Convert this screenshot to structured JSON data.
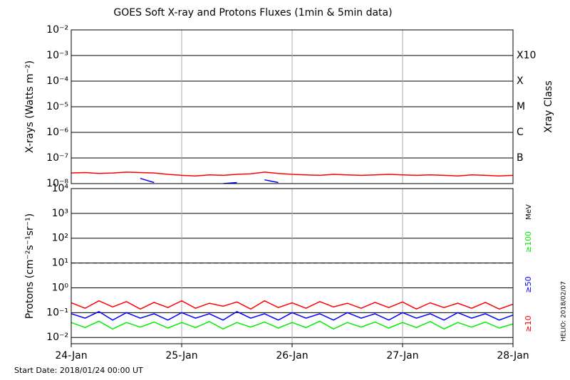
{
  "title": "GOES Soft X-ray and Protons Fluxes   (1min & 5min data)",
  "footer": "Start Date: 2018/01/24 00:00 UT",
  "credit": "HELIO: 2018/02/07",
  "chart_data": [
    {
      "type": "line",
      "log_y": true,
      "y_label": "X-rays (Watts m⁻²)",
      "y2_label": "Xray Class",
      "x": [
        24,
        24.125,
        24.25,
        24.375,
        24.5,
        24.625,
        24.75,
        24.875,
        25,
        25.125,
        25.25,
        25.375,
        25.5,
        25.625,
        25.75,
        25.875,
        26,
        26.125,
        26.25,
        26.375,
        26.5,
        26.625,
        26.75,
        26.875,
        27,
        27.125,
        27.25,
        27.375,
        27.5,
        27.625,
        27.75,
        27.875,
        28
      ],
      "xlim": [
        24,
        28
      ],
      "xticks": [
        {
          "value": 24,
          "label": "24-Jan"
        },
        {
          "value": 25,
          "label": "25-Jan"
        },
        {
          "value": 26,
          "label": "26-Jan"
        },
        {
          "value": 27,
          "label": "27-Jan"
        },
        {
          "value": 28,
          "label": "28-Jan"
        }
      ],
      "ylim": [
        1e-08,
        0.01
      ],
      "yticks": [
        {
          "value": 0.01,
          "label": "10⁻²"
        },
        {
          "value": 0.001,
          "label": "10⁻³"
        },
        {
          "value": 0.0001,
          "label": "10⁻⁴"
        },
        {
          "value": 1e-05,
          "label": "10⁻⁵"
        },
        {
          "value": 1e-06,
          "label": "10⁻⁶"
        },
        {
          "value": 1e-07,
          "label": "10⁻⁷"
        },
        {
          "value": 1e-08,
          "label": "10⁻⁸"
        }
      ],
      "y2lim": [
        1e-08,
        0.01
      ],
      "y2ticks": [
        {
          "value": 0.001,
          "label": "X10"
        },
        {
          "value": 0.0001,
          "label": "X"
        },
        {
          "value": 1e-05,
          "label": "M"
        },
        {
          "value": 1e-06,
          "label": "C"
        },
        {
          "value": 1e-07,
          "label": "B"
        }
      ],
      "series": [
        {
          "color": "#ff0000",
          "values": [
            2.6e-08,
            2.7e-08,
            2.5e-08,
            2.6e-08,
            2.8e-08,
            2.7e-08,
            2.6e-08,
            2.3e-08,
            2.1e-08,
            2e-08,
            2.2e-08,
            2.1e-08,
            2.3e-08,
            2.4e-08,
            2.8e-08,
            2.5e-08,
            2.3e-08,
            2.2e-08,
            2.1e-08,
            2.3e-08,
            2.2e-08,
            2.1e-08,
            2.2e-08,
            2.3e-08,
            2.2e-08,
            2.1e-08,
            2.2e-08,
            2.1e-08,
            2e-08,
            2.2e-08,
            2.1e-08,
            2e-08,
            2.1e-08
          ]
        },
        {
          "color": "#0000ff",
          "values": [
            null,
            null,
            null,
            null,
            null,
            1.6e-08,
            1.1e-08,
            null,
            null,
            null,
            null,
            1e-08,
            1.1e-08,
            null,
            1.4e-08,
            1.1e-08,
            null,
            null,
            null,
            null,
            null,
            null,
            null,
            null,
            null,
            null,
            null,
            null,
            null,
            null,
            null,
            null,
            null
          ]
        }
      ]
    },
    {
      "type": "line",
      "log_y": true,
      "y_label": "Protons (cm⁻²s⁻¹sr⁻¹)",
      "legend_unit": "MeV",
      "reference_line": 10,
      "x": [
        24,
        24.125,
        24.25,
        24.375,
        24.5,
        24.625,
        24.75,
        24.875,
        25,
        25.125,
        25.25,
        25.375,
        25.5,
        25.625,
        25.75,
        25.875,
        26,
        26.125,
        26.25,
        26.375,
        26.5,
        26.625,
        26.75,
        26.875,
        27,
        27.125,
        27.25,
        27.375,
        27.5,
        27.625,
        27.75,
        27.875,
        28
      ],
      "xlim": [
        24,
        28
      ],
      "xticks": [
        {
          "value": 24,
          "label": "24-Jan"
        },
        {
          "value": 25,
          "label": "25-Jan"
        },
        {
          "value": 26,
          "label": "26-Jan"
        },
        {
          "value": 27,
          "label": "27-Jan"
        },
        {
          "value": 28,
          "label": "28-Jan"
        }
      ],
      "ylim": [
        0.0056,
        10000
      ],
      "yticks": [
        {
          "value": 10000,
          "label": "10⁴"
        },
        {
          "value": 1000,
          "label": "10³"
        },
        {
          "value": 100,
          "label": "10²"
        },
        {
          "value": 10,
          "label": "10¹"
        },
        {
          "value": 1,
          "label": "10⁰"
        },
        {
          "value": 0.1,
          "label": "10⁻¹"
        },
        {
          "value": 0.01,
          "label": "10⁻²"
        }
      ],
      "series": [
        {
          "name": "≥10",
          "color": "#ff0000",
          "values": [
            0.25,
            0.15,
            0.3,
            0.17,
            0.28,
            0.14,
            0.26,
            0.16,
            0.3,
            0.15,
            0.24,
            0.18,
            0.27,
            0.14,
            0.3,
            0.16,
            0.25,
            0.15,
            0.28,
            0.17,
            0.24,
            0.15,
            0.26,
            0.16,
            0.27,
            0.14,
            0.25,
            0.16,
            0.24,
            0.15,
            0.26,
            0.14,
            0.22
          ]
        },
        {
          "name": "≥50",
          "color": "#0000ff",
          "values": [
            0.09,
            0.06,
            0.11,
            0.05,
            0.1,
            0.06,
            0.09,
            0.05,
            0.1,
            0.06,
            0.09,
            0.05,
            0.11,
            0.06,
            0.09,
            0.05,
            0.1,
            0.06,
            0.09,
            0.05,
            0.1,
            0.06,
            0.09,
            0.05,
            0.1,
            0.06,
            0.09,
            0.05,
            0.1,
            0.06,
            0.09,
            0.05,
            0.08
          ]
        },
        {
          "name": "≥100",
          "color": "#00ee00",
          "values": [
            0.04,
            0.025,
            0.045,
            0.022,
            0.04,
            0.026,
            0.042,
            0.024,
            0.04,
            0.025,
            0.044,
            0.022,
            0.04,
            0.026,
            0.042,
            0.024,
            0.04,
            0.025,
            0.045,
            0.022,
            0.04,
            0.026,
            0.042,
            0.024,
            0.04,
            0.025,
            0.044,
            0.022,
            0.04,
            0.026,
            0.042,
            0.024,
            0.035
          ]
        }
      ]
    }
  ]
}
